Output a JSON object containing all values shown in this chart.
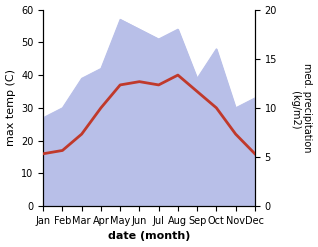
{
  "months": [
    "Jan",
    "Feb",
    "Mar",
    "Apr",
    "May",
    "Jun",
    "Jul",
    "Aug",
    "Sep",
    "Oct",
    "Nov",
    "Dec"
  ],
  "temp": [
    16,
    17,
    22,
    30,
    37,
    38,
    37,
    40,
    35,
    30,
    22,
    16
  ],
  "precip": [
    9,
    10,
    13,
    14,
    19,
    18,
    17,
    18,
    13,
    16,
    10,
    11
  ],
  "temp_color": "#c0392b",
  "precip_fill_color": "#b8bfe8",
  "left_label": "max temp (C)",
  "right_label": "med. precipitation\n (kg/m2)",
  "xlabel": "date (month)",
  "ylim_left": [
    0,
    60
  ],
  "ylim_right": [
    0,
    20
  ],
  "yticks_left": [
    0,
    10,
    20,
    30,
    40,
    50,
    60
  ],
  "yticks_right": [
    0,
    5,
    10,
    15,
    20
  ],
  "bg_color": "#ffffff",
  "fig_width": 3.18,
  "fig_height": 2.47,
  "dpi": 100
}
